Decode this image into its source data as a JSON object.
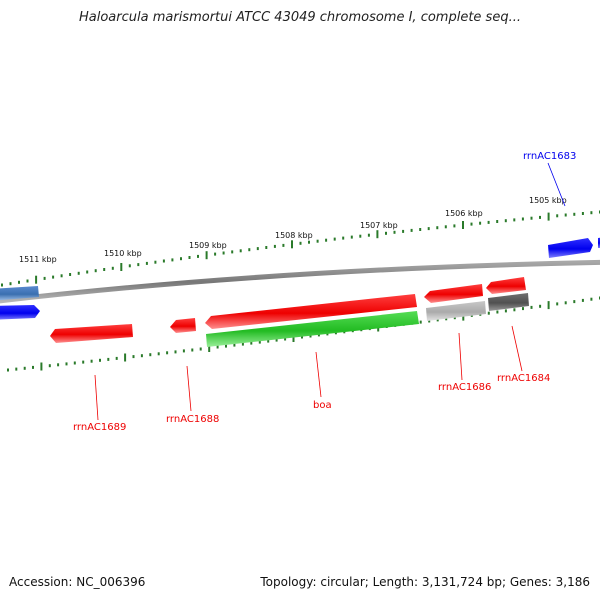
{
  "header": {
    "title": "Haloarcula marismortui ATCC 43049 chromosome I, complete seq..."
  },
  "footer": {
    "accession": "Accession: NC_006396",
    "summary": "Topology: circular; Length: 3,131,724 bp; Genes: 3,186"
  },
  "scale": {
    "ticks": [
      "1511 kbp",
      "1510 kbp",
      "1509 kbp",
      "1508 kbp",
      "1507 kbp",
      "1506 kbp",
      "1505 kbp"
    ]
  },
  "genes": [
    {
      "label": "rrnAC1683",
      "strand": "forward",
      "color": "#0000ee"
    },
    {
      "label": "rrnAC1684",
      "strand": "reverse",
      "color": "#ee0000"
    },
    {
      "label": "rrnAC1686",
      "strand": "reverse",
      "color": "#ee0000"
    },
    {
      "label": "boa",
      "strand": "reverse",
      "color": "#ee0000"
    },
    {
      "label": "rrnAC1688",
      "strand": "reverse",
      "color": "#ee0000"
    },
    {
      "label": "rrnAC1689",
      "strand": "reverse",
      "color": "#ee0000"
    }
  ],
  "colors": {
    "backbone": "#808080",
    "tick": "#2a7a2a",
    "cds_forward": "#0000ee",
    "cds_reverse": "#ee0000",
    "rna": "#33cc33",
    "other_dark": "#555555",
    "other_light": "#b0b0b0",
    "cds_blue_light": "#3a6fb0"
  }
}
